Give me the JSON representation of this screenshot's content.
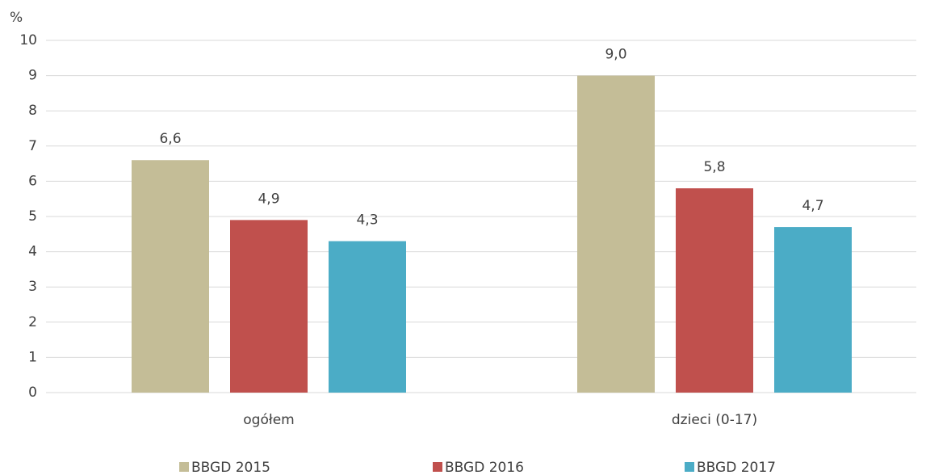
{
  "chart_data": {
    "type": "bar",
    "y_axis_label": "%",
    "categories": [
      "ogółem",
      "dzieci (0-17)"
    ],
    "series": [
      {
        "name": "BBGD 2015",
        "color": "#c4bd97",
        "values": [
          6.6,
          9.0
        ],
        "value_labels": [
          "6,6",
          "9,0"
        ]
      },
      {
        "name": "BBGD 2016",
        "color": "#c0504d",
        "values": [
          4.9,
          5.8
        ],
        "value_labels": [
          "4,9",
          "5,8"
        ]
      },
      {
        "name": "BBGD 2017",
        "color": "#4bacc6",
        "values": [
          4.3,
          4.7
        ],
        "value_labels": [
          "4,3",
          "4,7"
        ]
      }
    ],
    "ylim": [
      0,
      10
    ],
    "yticks": [
      0,
      1,
      2,
      3,
      4,
      5,
      6,
      7,
      8,
      9,
      10
    ],
    "grid": true,
    "legend": "bottom"
  }
}
